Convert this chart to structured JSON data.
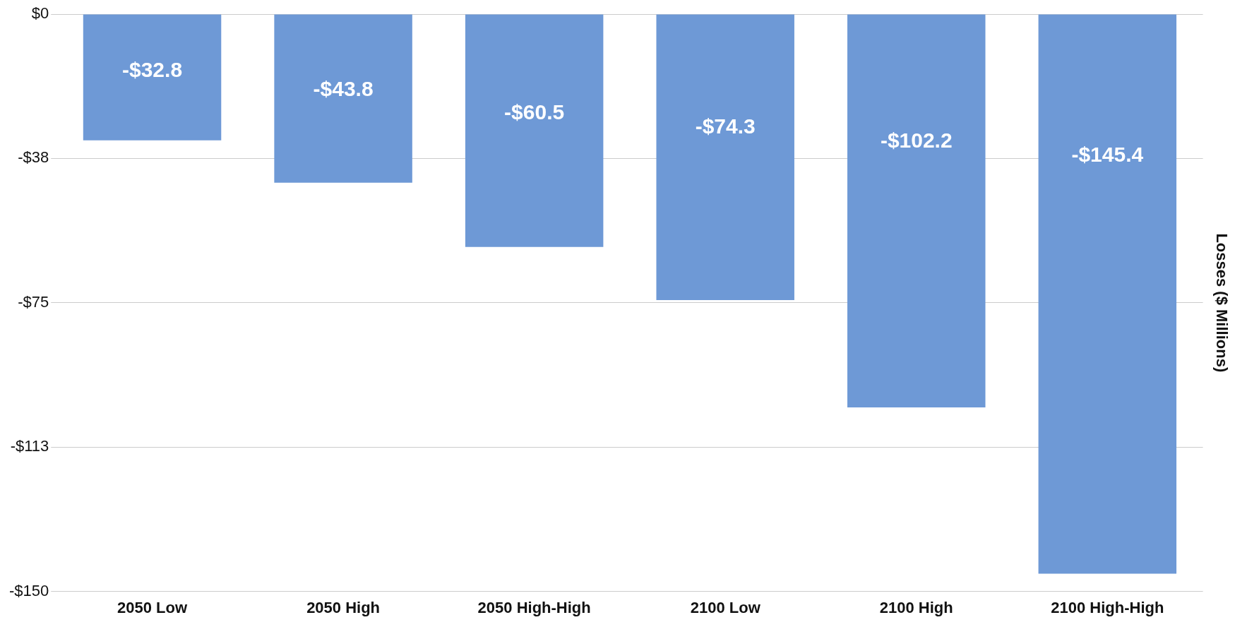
{
  "chart_data": {
    "type": "bar",
    "ylabel": "Losses ($ Millions)",
    "categories": [
      "2050 Low",
      "2050 High",
      "2050 High-High",
      "2100 Low",
      "2100 High",
      "2100 High-High"
    ],
    "values": [
      -32.8,
      -43.8,
      -60.5,
      -74.3,
      -102.2,
      -145.4
    ],
    "value_labels": [
      "-$32.8",
      "-$43.8",
      "-$60.5",
      "-$74.3",
      "-$102.2",
      "-$145.4"
    ],
    "color": "#6e99d6",
    "ylim": [
      -150,
      0
    ],
    "yticks": [
      {
        "value": 0,
        "label": "$0"
      },
      {
        "value": -37.5,
        "label": "-$38"
      },
      {
        "value": -75,
        "label": "-$75"
      },
      {
        "value": -112.5,
        "label": "-$113"
      },
      {
        "value": -150,
        "label": "-$150"
      }
    ],
    "grid": "y"
  }
}
